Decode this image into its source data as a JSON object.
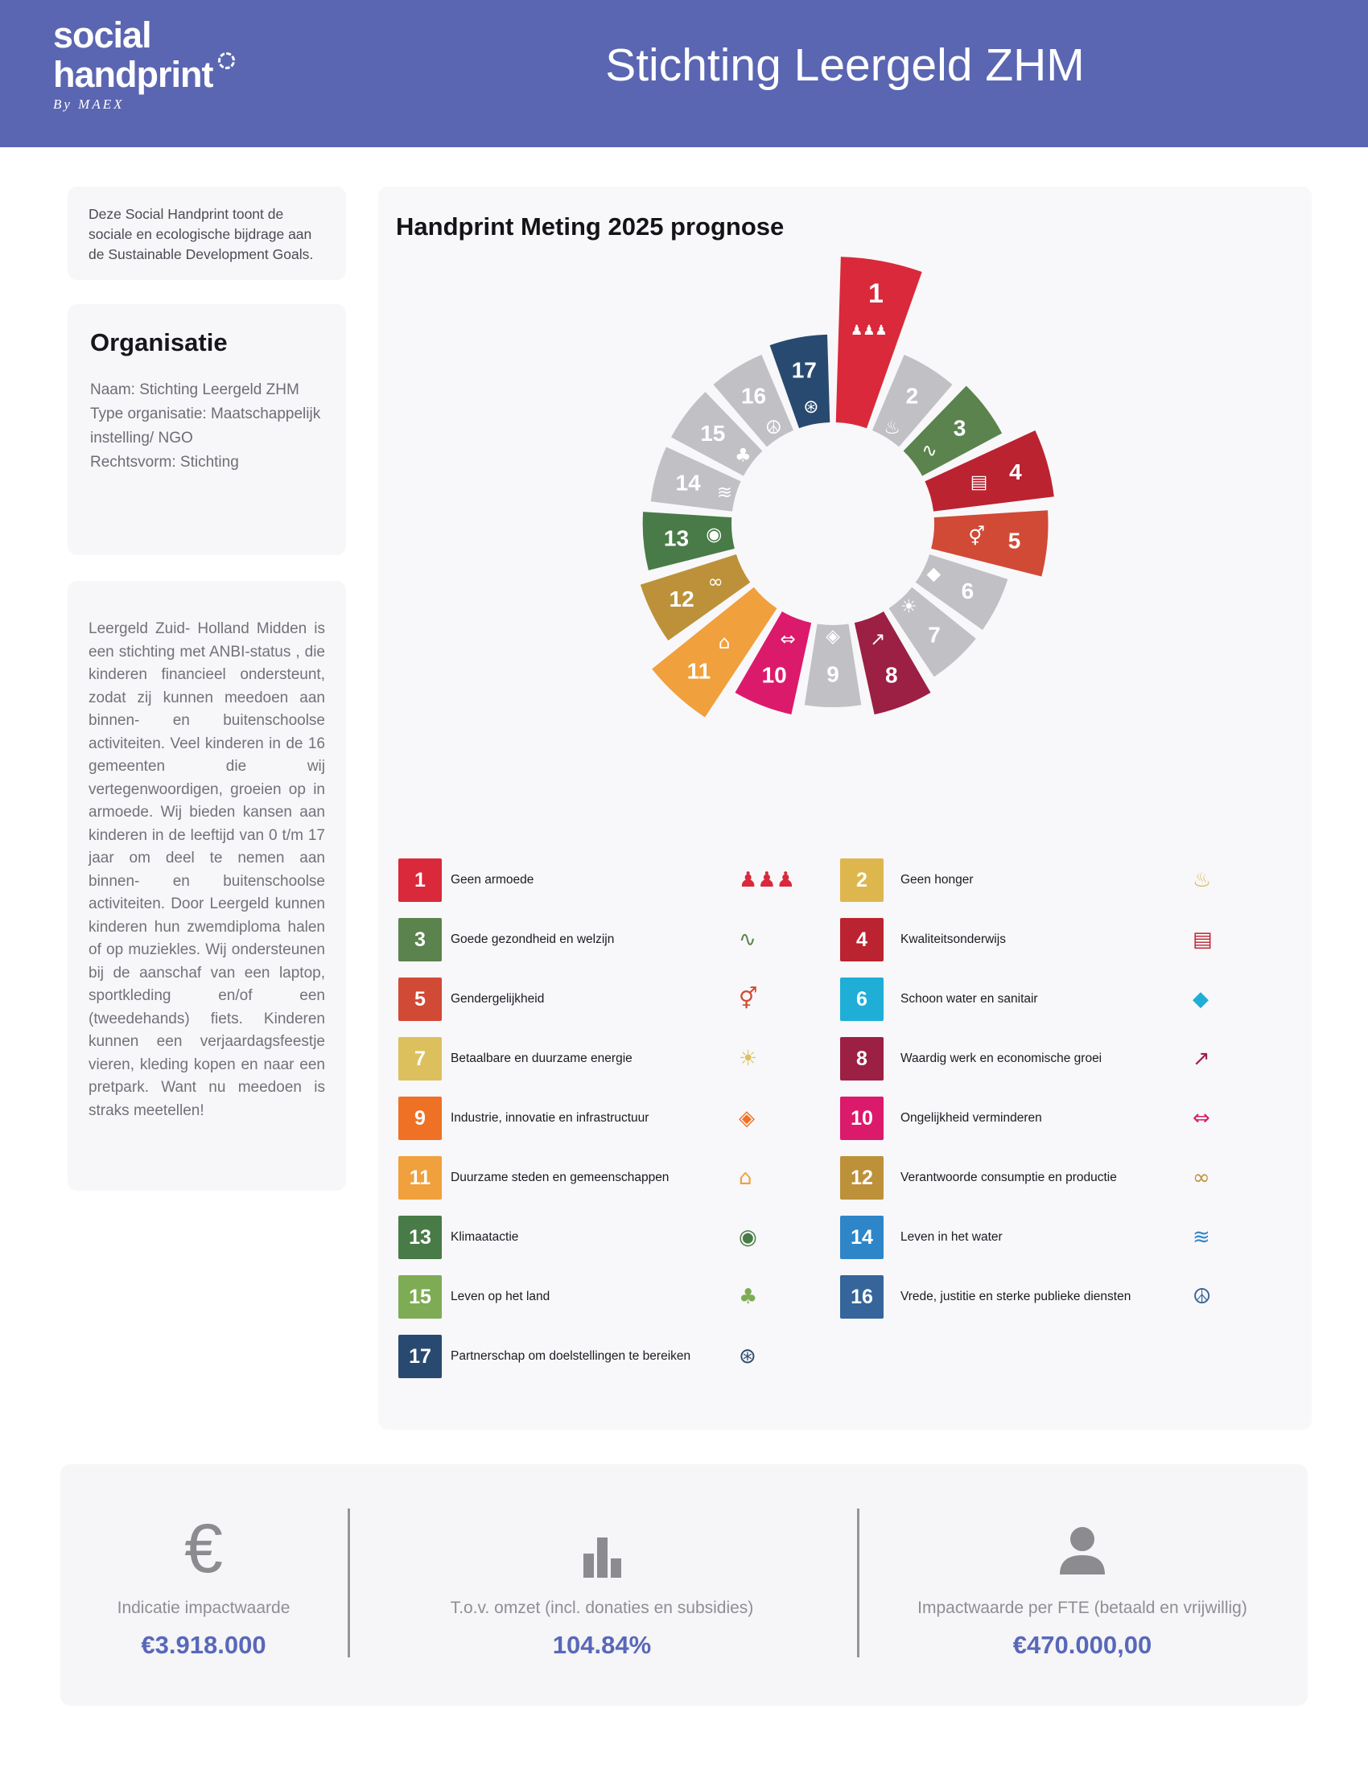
{
  "header": {
    "logo_line1": "social",
    "logo_line2": "handprint",
    "logo_byline": "By MAEX",
    "title": "Stichting Leergeld ZHM",
    "bg_color": "#5a66b2"
  },
  "sidebar": {
    "intro": "Deze Social Handprint toont de sociale en ecologische bijdrage aan de Sustainable Development Goals.",
    "organisation": {
      "heading": "Organisatie",
      "lines": [
        "Naam: Stichting Leergeld ZHM",
        "Type organisatie: Maatschappelijk instelling/ NGO",
        "Rechtsvorm: Stichting"
      ]
    },
    "description": "Leergeld Zuid- Holland Midden is een stichting met ANBI-status , die kinderen financieel ondersteunt, zodat zij kunnen meedoen aan binnen- en buitenschoolse activiteiten. Veel kinderen in de 16 gemeenten die wij vertegenwoordigen, groeien op in armoede. Wij bieden kansen aan kinderen in de leeftijd van 0 t/m 17 jaar om deel te nemen aan binnen- en buitenschoolse activiteiten. Door Leergeld kunnen kinderen hun zwemdiploma halen of op muziekles. Wij ondersteunen bij de aanschaf van een laptop, sportkleding en/of een (tweedehands) fiets. Kinderen kunnen een verjaardagsfeestje vieren, kleding kopen en naar een pretpark. Want nu meedoen is straks meetellen!",
    "bg_color": "#f7f6f8"
  },
  "chart": {
    "title": "Handprint Meting 2025 prognose"
  },
  "chart_data": {
    "type": "rose-donut",
    "title": "Handprint Meting 2025 prognose",
    "layout": "17 equal-angle SDG wedges, SDG 1 starting at 12 o'clock, clockwise; wedge radial length shows relative contribution; gray wedges = no contribution",
    "inner_radius": 126,
    "base_outer_radius": 228,
    "max_outer_radius": 332,
    "inactive_color": "#c1c0c5",
    "segments": [
      {
        "num": 1,
        "label": "Geen armoede",
        "color": "#d9293b",
        "active": true,
        "value": 100,
        "icon": "people-icon",
        "glyph": "♟♟♟"
      },
      {
        "num": 2,
        "label": "Geen honger",
        "color": "#ddb74e",
        "active": false,
        "value": 0,
        "icon": "food-bowl-icon",
        "glyph": "♨"
      },
      {
        "num": 3,
        "label": "Goede gezondheid en welzijn",
        "color": "#5b834e",
        "active": true,
        "value": 10,
        "icon": "heartbeat-icon",
        "glyph": "∿"
      },
      {
        "num": 4,
        "label": "Kwaliteitsonderwijs",
        "color": "#bb2330",
        "active": true,
        "value": 47,
        "icon": "open-book-icon",
        "glyph": "▤"
      },
      {
        "num": 5,
        "label": "Gendergelijkheid",
        "color": "#d04a36",
        "active": true,
        "value": 38,
        "icon": "gender-equality-icon",
        "glyph": "⚥"
      },
      {
        "num": 6,
        "label": "Schoon water en sanitair",
        "color": "#1faed6",
        "active": false,
        "value": 0,
        "icon": "water-drop-icon",
        "glyph": "◆"
      },
      {
        "num": 7,
        "label": "Betaalbare en duurzame energie",
        "color": "#ddc05e",
        "active": false,
        "value": 0,
        "icon": "sun-energy-icon",
        "glyph": "☀"
      },
      {
        "num": 8,
        "label": "Waardig werk en economische groei",
        "color": "#9c2044",
        "active": true,
        "value": 14,
        "icon": "growth-chart-icon",
        "glyph": "↗"
      },
      {
        "num": 9,
        "label": "Industrie, innovatie en infrastructuur",
        "color": "#ee7125",
        "active": false,
        "value": 0,
        "icon": "building-blocks-icon",
        "glyph": "◈"
      },
      {
        "num": 10,
        "label": "Ongelijkheid verminderen",
        "color": "#dc1a6c",
        "active": true,
        "value": 14,
        "icon": "equality-arrows-icon",
        "glyph": "⇔"
      },
      {
        "num": 11,
        "label": "Duurzame steden en gemeenschappen",
        "color": "#f0a03c",
        "active": true,
        "value": 58,
        "icon": "city-icon",
        "glyph": "⌂"
      },
      {
        "num": 12,
        "label": "Verantwoorde consumptie en productie",
        "color": "#bd9139",
        "active": true,
        "value": 22,
        "icon": "infinity-icon",
        "glyph": "∞"
      },
      {
        "num": 13,
        "label": "Klimaatactie",
        "color": "#487b47",
        "active": true,
        "value": 8,
        "icon": "eye-climate-icon",
        "glyph": "◉"
      },
      {
        "num": 14,
        "label": "Leven in het water",
        "color": "#2e86c8",
        "active": false,
        "value": 0,
        "icon": "fish-icon",
        "glyph": "≋"
      },
      {
        "num": 15,
        "label": "Leven op het land",
        "color": "#7eac55",
        "active": false,
        "value": 0,
        "icon": "tree-icon",
        "glyph": "♣"
      },
      {
        "num": 16,
        "label": "Vrede, justitie en sterke publieke diensten",
        "color": "#35659b",
        "active": false,
        "value": 0,
        "icon": "peace-dove-icon",
        "glyph": "☮"
      },
      {
        "num": 17,
        "label": "Partnerschap om doelstellingen te bereiken",
        "color": "#294a70",
        "active": true,
        "value": 7,
        "icon": "partnership-wheel-icon",
        "glyph": "⊛"
      }
    ]
  },
  "legend": {
    "left_column_nums": [
      1,
      3,
      5,
      7,
      9,
      11,
      13,
      15,
      17
    ],
    "right_column_nums": [
      2,
      4,
      6,
      8,
      10,
      12,
      14,
      16
    ]
  },
  "stats": {
    "accent_color": "#5868b9",
    "items": [
      {
        "icon": "euro-icon",
        "label": "Indicatie impactwaarde",
        "value": "€3.918.000"
      },
      {
        "icon": "bar-chart-icon",
        "label": "T.o.v. omzet (incl. donaties en subsidies)",
        "value": "104.84%"
      },
      {
        "icon": "person-icon",
        "label": "Impactwaarde per FTE (betaald en vrijwillig)",
        "value": "€470.000,00"
      }
    ]
  }
}
